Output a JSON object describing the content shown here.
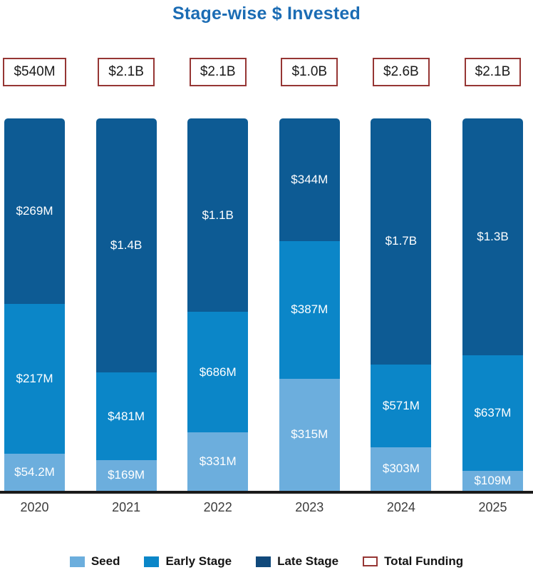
{
  "title": "Stage-wise $ Invested",
  "colors": {
    "title_text": "#1B6CB4",
    "seed": "#6CAEDD",
    "early_stage": "#0B86C8",
    "late_stage": "#0D5B94",
    "legend_late_swatch": "#11497B",
    "total_box_border": "#963634",
    "axis_line": "#1A1A1A",
    "bar_label_text": "#FFFFFF",
    "axis_label_text": "#3C3C3C"
  },
  "chart_data": {
    "type": "bar",
    "subtype": "stacked-normalized-height",
    "title": "Stage-wise $ Invested",
    "categories": [
      "2020",
      "2021",
      "2022",
      "2023",
      "2024",
      "2025"
    ],
    "unit": "USD millions",
    "grid": false,
    "legend_position": "bottom",
    "stack_order_top_to_bottom": [
      "Late Stage",
      "Early Stage",
      "Seed"
    ],
    "series": [
      {
        "name": "Seed",
        "color": "#6CAEDD",
        "values": [
          54.2,
          169,
          331,
          315,
          303,
          109
        ],
        "labels": [
          "$54.2M",
          "$169M",
          "$331M",
          "$315M",
          "$303M",
          "$109M"
        ]
      },
      {
        "name": "Early Stage",
        "color": "#0B86C8",
        "values": [
          217,
          481,
          686,
          387,
          571,
          637
        ],
        "labels": [
          "$217M",
          "$481M",
          "$686M",
          "$387M",
          "$571M",
          "$637M"
        ]
      },
      {
        "name": "Late Stage",
        "color": "#0D5B94",
        "values": [
          269,
          1400,
          1100,
          344,
          1700,
          1300
        ],
        "labels": [
          "$269M",
          "$1.4B",
          "$1.1B",
          "$344M",
          "$1.7B",
          "$1.3B"
        ]
      }
    ],
    "totals": {
      "name": "Total Funding",
      "labels": [
        "$540M",
        "$2.1B",
        "$2.1B",
        "$1.0B",
        "$2.6B",
        "$2.1B"
      ]
    }
  },
  "legend": {
    "items": [
      {
        "label": "Seed",
        "swatch": "#6CAEDD",
        "type": "fill"
      },
      {
        "label": "Early Stage",
        "swatch": "#0B86C8",
        "type": "fill"
      },
      {
        "label": "Late Stage",
        "swatch": "#11497B",
        "type": "fill"
      },
      {
        "label": "Total Funding",
        "swatch": "#FFFFFF",
        "border": "#963634",
        "type": "outline"
      }
    ]
  }
}
